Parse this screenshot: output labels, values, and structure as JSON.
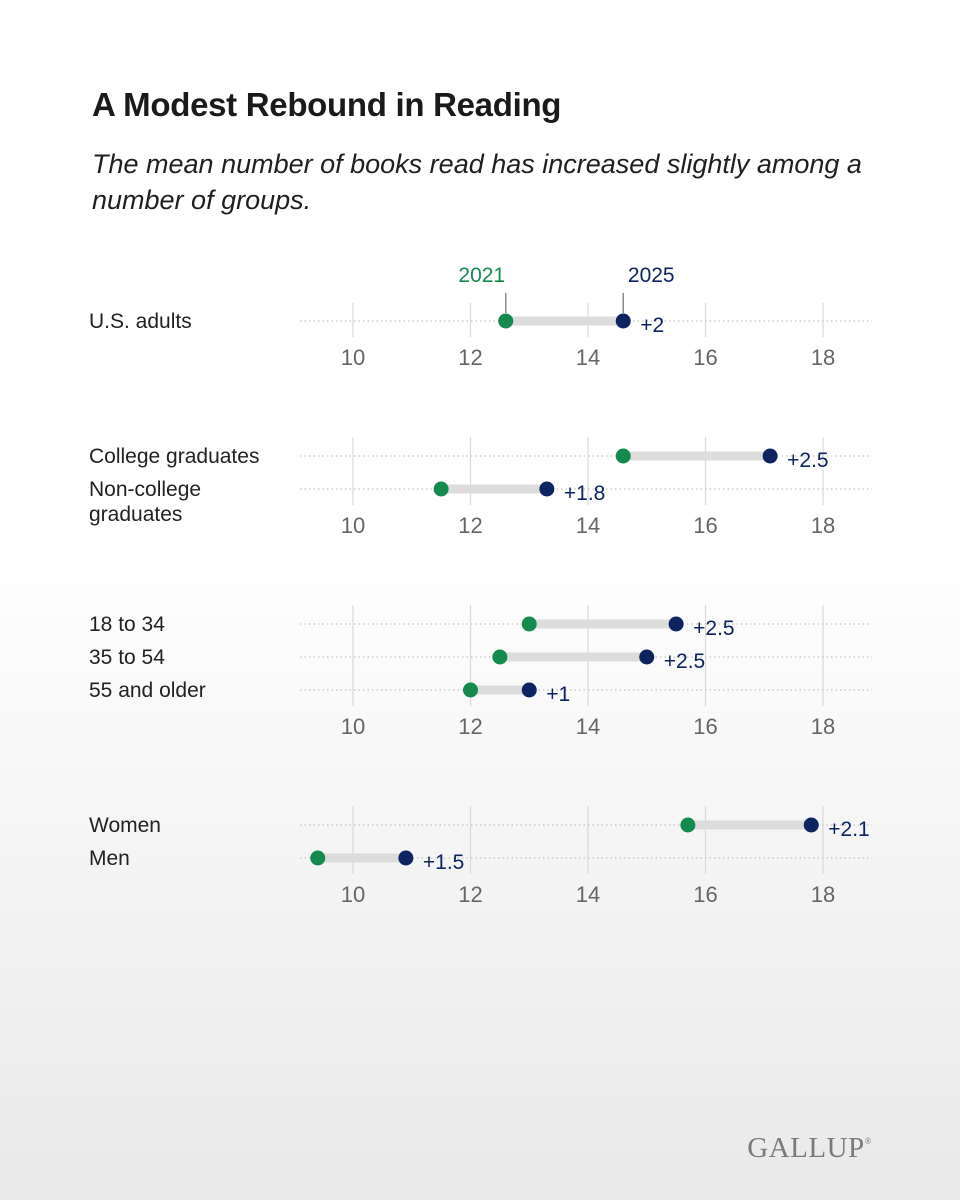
{
  "title": "A Modest Rebound in Reading",
  "subtitle": "The mean number of books read has increased slightly among a number of groups.",
  "logo": "GALLUP",
  "colors": {
    "y2021": "#148a4f",
    "y2025": "#0d2461",
    "connector": "#dcdcdc",
    "grid": "#d9d9d9",
    "label": "#222222",
    "tick": "#666666"
  },
  "chart_data": {
    "type": "dumbbell",
    "title": "A Modest Rebound in Reading",
    "series_names": [
      "2021",
      "2025"
    ],
    "xlim": [
      9,
      18.8
    ],
    "ticks": [
      10,
      12,
      14,
      16,
      18
    ],
    "groups": [
      {
        "name": "overall",
        "rows": [
          {
            "label": [
              "U.S. adults"
            ],
            "v2021": 12.6,
            "v2025": 14.6,
            "change": "+2"
          }
        ]
      },
      {
        "name": "education",
        "rows": [
          {
            "label": [
              "College graduates"
            ],
            "v2021": 14.6,
            "v2025": 17.1,
            "change": "+2.5"
          },
          {
            "label": [
              "Non-college",
              "graduates"
            ],
            "v2021": 11.5,
            "v2025": 13.3,
            "change": "+1.8"
          }
        ]
      },
      {
        "name": "age",
        "rows": [
          {
            "label": [
              "18 to 34"
            ],
            "v2021": 13.0,
            "v2025": 15.5,
            "change": "+2.5"
          },
          {
            "label": [
              "35 to 54"
            ],
            "v2021": 12.5,
            "v2025": 15.0,
            "change": "+2.5"
          },
          {
            "label": [
              "55 and older"
            ],
            "v2021": 12.0,
            "v2025": 13.0,
            "change": "+1"
          }
        ]
      },
      {
        "name": "gender",
        "rows": [
          {
            "label": [
              "Women"
            ],
            "v2021": 15.7,
            "v2025": 17.8,
            "change": "+2.1"
          },
          {
            "label": [
              "Men"
            ],
            "v2021": 9.4,
            "v2025": 10.9,
            "change": "+1.5"
          }
        ]
      }
    ]
  }
}
